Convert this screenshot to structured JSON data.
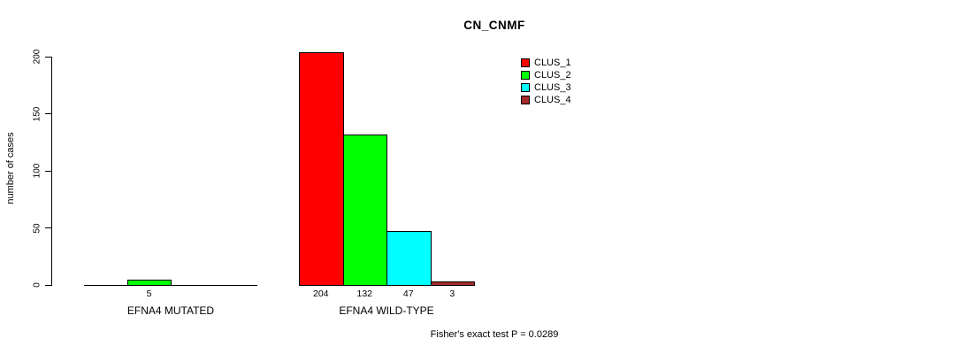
{
  "chart_data": {
    "type": "bar",
    "title": "CN_CNMF",
    "xlabel": "",
    "ylabel": "number of cases",
    "ylim": [
      0,
      200
    ],
    "yticks": [
      0,
      50,
      100,
      150,
      200
    ],
    "grid": false,
    "legend_position": "top-right",
    "legend": [
      {
        "name": "CLUS_1",
        "color": "#FF0000"
      },
      {
        "name": "CLUS_2",
        "color": "#00FF00"
      },
      {
        "name": "CLUS_3",
        "color": "#00FFFF"
      },
      {
        "name": "CLUS_4",
        "color": "#A52A2A"
      }
    ],
    "slots_per_group": 4,
    "groups": [
      {
        "label": "EFNA4 MUTATED",
        "bars": [
          {
            "series": "CLUS_2",
            "slot": 1,
            "value": 5,
            "label": "5"
          }
        ]
      },
      {
        "label": "EFNA4 WILD-TYPE",
        "bars": [
          {
            "series": "CLUS_1",
            "slot": 0,
            "value": 204,
            "label": "204"
          },
          {
            "series": "CLUS_2",
            "slot": 1,
            "value": 132,
            "label": "132"
          },
          {
            "series": "CLUS_3",
            "slot": 2,
            "value": 47,
            "label": "47"
          },
          {
            "series": "CLUS_4",
            "slot": 3,
            "value": 3,
            "label": "3"
          }
        ]
      }
    ],
    "footnote": "Fisher's exact test P = 0.0289"
  }
}
